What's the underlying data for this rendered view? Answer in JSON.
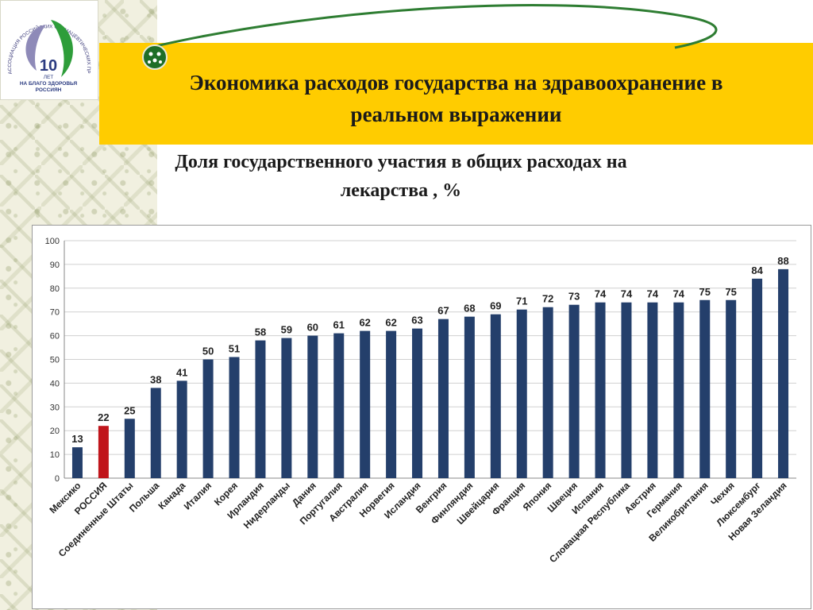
{
  "header": {
    "title_line1": "Экономика расходов государства на здравоохранение в",
    "title_line2": "реальном выражении",
    "subtitle_line1": "Доля государственного участия в общих расходах на",
    "subtitle_line2": "лекарства , %"
  },
  "logo": {
    "arc_text": "АССОЦИАЦИЯ РОССИЙСКИХ ФАРМАЦЕВТИЧЕСКИХ ПРОИЗВОДИТЕЛЕЙ",
    "number": "10",
    "line1": "ЛЕТ",
    "line2": "НА БЛАГО ЗДОРОВЬЯ",
    "line3": "РОССИЯН"
  },
  "colors": {
    "bar": "#243f6b",
    "highlight_bar": "#c0151b",
    "band": "#ffcc00",
    "swoosh": "#2e7d32"
  },
  "chart_data": {
    "type": "bar",
    "categories": [
      "Мексико",
      "РОССИЯ",
      "Соединенные Штаты",
      "Польша",
      "Канада",
      "Италия",
      "Корея",
      "Ирландия",
      "Нидерланды",
      "Дания",
      "Португалия",
      "Австралия",
      "Норвегия",
      "Исландия",
      "Венгрия",
      "Финляндия",
      "Швейцария",
      "Франция",
      "Япония",
      "Швеция",
      "Испания",
      "Словацкая Республика",
      "Австрия",
      "Германия",
      "Великобритания",
      "Чехия",
      "Люксембург",
      "Новая Зеландия"
    ],
    "values": [
      13,
      22,
      25,
      38,
      41,
      50,
      51,
      58,
      59,
      60,
      61,
      62,
      62,
      63,
      67,
      68,
      69,
      71,
      72,
      73,
      74,
      74,
      74,
      74,
      75,
      75,
      84,
      88
    ],
    "highlight_category": "РОССИЯ",
    "ylim": [
      0,
      100
    ],
    "yticks": [
      0,
      10,
      20,
      30,
      40,
      50,
      60,
      70,
      80,
      90,
      100
    ],
    "grid": true,
    "legend": "none",
    "xlabel": "",
    "ylabel": ""
  }
}
